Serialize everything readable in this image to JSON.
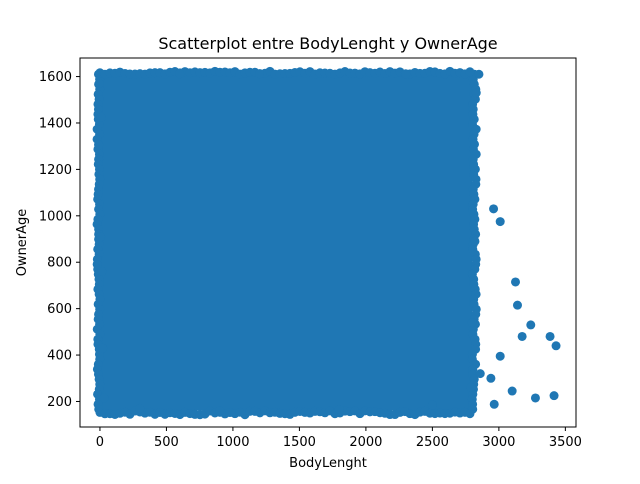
{
  "chart_data": {
    "type": "scatter",
    "title": "Scatterplot entre BodyLenght y OwnerAge",
    "xlabel": "BodyLenght",
    "ylabel": "OwnerAge",
    "xlim": [
      -150,
      3580
    ],
    "ylim": [
      90,
      1680
    ],
    "xticks": [
      0,
      500,
      1000,
      1500,
      2000,
      2500,
      3000,
      3500
    ],
    "xtick_labels": [
      "0",
      "500",
      "1000",
      "1500",
      "2000",
      "2500",
      "3000",
      "3500"
    ],
    "yticks": [
      200,
      400,
      600,
      800,
      1000,
      1200,
      1400,
      1600
    ],
    "ytick_labels": [
      "200",
      "400",
      "600",
      "800",
      "1000",
      "1200",
      "1400",
      "1600"
    ],
    "color": "#1f77b4",
    "grid": false,
    "legend": "none",
    "dense_region": {
      "x_range": [
        0,
        2800
      ],
      "y_range": [
        160,
        1610
      ]
    },
    "points": [
      {
        "x": 2960,
        "y": 1030
      },
      {
        "x": 3010,
        "y": 975
      },
      {
        "x": 3125,
        "y": 715
      },
      {
        "x": 3140,
        "y": 615
      },
      {
        "x": 3240,
        "y": 530
      },
      {
        "x": 3175,
        "y": 480
      },
      {
        "x": 3385,
        "y": 480
      },
      {
        "x": 3430,
        "y": 440
      },
      {
        "x": 3010,
        "y": 395
      },
      {
        "x": 2860,
        "y": 320
      },
      {
        "x": 2940,
        "y": 300
      },
      {
        "x": 3100,
        "y": 245
      },
      {
        "x": 3275,
        "y": 215
      },
      {
        "x": 3415,
        "y": 225
      },
      {
        "x": 2965,
        "y": 188
      },
      {
        "x": 2850,
        "y": 1610
      },
      {
        "x": 2830,
        "y": 1530
      },
      {
        "x": -10,
        "y": 1305
      },
      {
        "x": -5,
        "y": 1570
      },
      {
        "x": 10,
        "y": 1425
      },
      {
        "x": 5,
        "y": 910
      },
      {
        "x": 15,
        "y": 760
      },
      {
        "x": 20,
        "y": 430
      },
      {
        "x": 30,
        "y": 215
      },
      {
        "x": 2810,
        "y": 1210
      },
      {
        "x": 2820,
        "y": 890
      },
      {
        "x": 2800,
        "y": 540
      },
      {
        "x": 2790,
        "y": 260
      },
      {
        "x": 2500,
        "y": 185
      },
      {
        "x": 1800,
        "y": 165
      },
      {
        "x": 900,
        "y": 160
      },
      {
        "x": 300,
        "y": 170
      },
      {
        "x": 1200,
        "y": 1612
      },
      {
        "x": 2300,
        "y": 1612
      },
      {
        "x": 600,
        "y": 1612
      }
    ]
  }
}
